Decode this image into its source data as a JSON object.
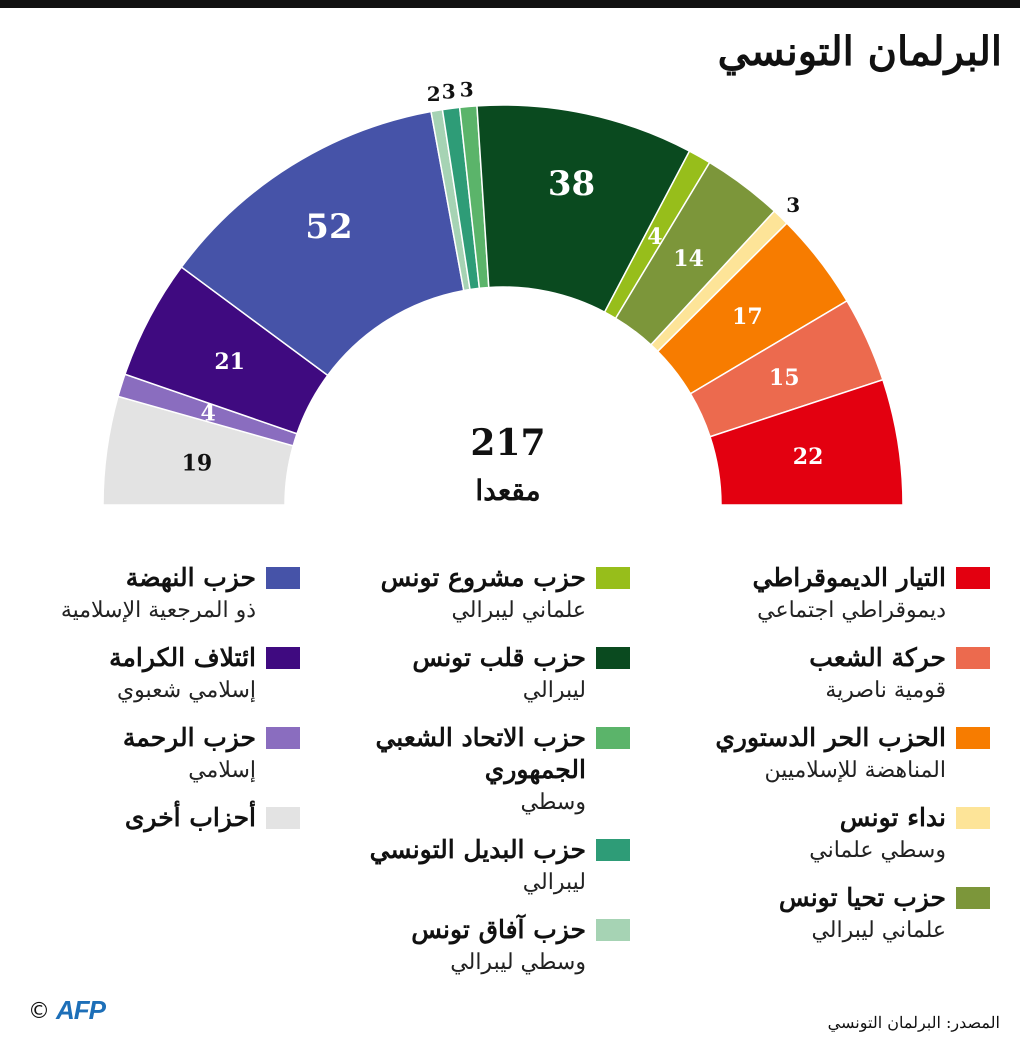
{
  "title": "البرلمان التونسي",
  "chart_data": {
    "type": "pie",
    "total": "217",
    "total_label": "مقعدا",
    "slices": [
      {
        "value": 19,
        "color": "#e3e3e3"
      },
      {
        "value": 4,
        "color": "#8a6dbf"
      },
      {
        "value": 21,
        "color": "#3f0a80"
      },
      {
        "value": 52,
        "color": "#4653a8"
      },
      {
        "value": 2,
        "color": "#a6d3b4"
      },
      {
        "value": 3,
        "color": "#2e9c77"
      },
      {
        "value": 3,
        "color": "#5bb46a"
      },
      {
        "value": 38,
        "color": "#0a4a1f"
      },
      {
        "value": 4,
        "color": "#97be1b"
      },
      {
        "value": 14,
        "color": "#7c963a"
      },
      {
        "value": 3,
        "color": "#fde498"
      },
      {
        "value": 17,
        "color": "#f77c00"
      },
      {
        "value": 15,
        "color": "#ec6a4e"
      },
      {
        "value": 22,
        "color": "#e30010"
      }
    ]
  },
  "legend": {
    "right": [
      {
        "name": "التيار الديموقراطي",
        "desc": "ديموقراطي اجتماعي",
        "color": "#e30010"
      },
      {
        "name": "حركة الشعب",
        "desc": "قومية ناصرية",
        "color": "#ec6a4e"
      },
      {
        "name": "الحزب الحر الدستوري",
        "desc": "المناهضة للإسلاميين",
        "color": "#f77c00"
      },
      {
        "name": "نداء تونس",
        "desc": "وسطي علماني",
        "color": "#fde498"
      },
      {
        "name": "حزب تحيا تونس",
        "desc": "علماني ليبرالي",
        "color": "#7c963a"
      }
    ],
    "middle": [
      {
        "name": "حزب مشروع تونس",
        "desc": "علماني ليبرالي",
        "color": "#97be1b"
      },
      {
        "name": "حزب قلب تونس",
        "desc": "ليبرالي",
        "color": "#0a4a1f"
      },
      {
        "name": "حزب الاتحاد الشعبي الجمهوري",
        "desc": "وسطي",
        "color": "#5bb46a"
      },
      {
        "name": "حزب البديل التونسي",
        "desc": "ليبرالي",
        "color": "#2e9c77"
      },
      {
        "name": "حزب آفاق تونس",
        "desc": "وسطي ليبرالي",
        "color": "#a6d3b4"
      }
    ],
    "left": [
      {
        "name": "حزب النهضة",
        "desc": "ذو المرجعية الإسلامية",
        "color": "#4653a8"
      },
      {
        "name": "ائتلاف الكرامة",
        "desc": "إسلامي شعبوي",
        "color": "#3f0a80"
      },
      {
        "name": "حزب الرحمة",
        "desc": "إسلامي",
        "color": "#8a6dbf"
      },
      {
        "name": "أحزاب أخرى",
        "desc": "",
        "color": "#e3e3e3"
      }
    ]
  },
  "source": "المصدر: البرلمان التونسي",
  "copyright": "©",
  "logo_text": "AFP"
}
